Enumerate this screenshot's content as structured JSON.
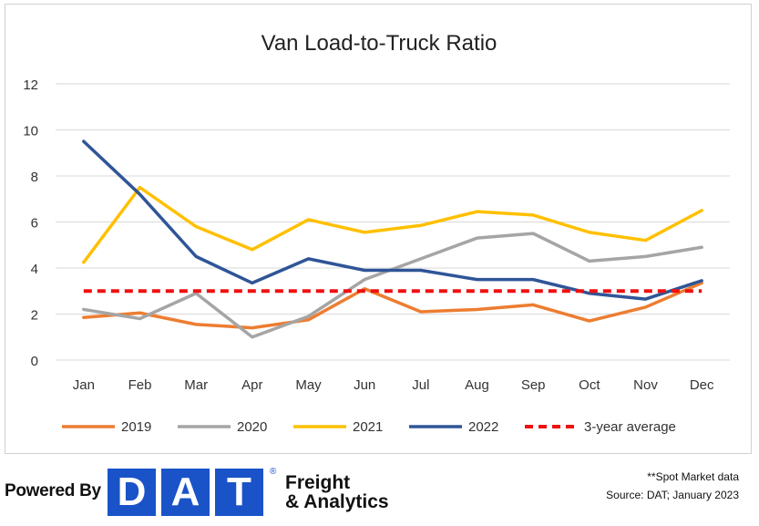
{
  "chart_data": {
    "type": "line",
    "title": "Van Load-to-Truck Ratio",
    "xlabel": "",
    "ylabel": "",
    "categories": [
      "Jan",
      "Feb",
      "Mar",
      "Apr",
      "May",
      "Jun",
      "Jul",
      "Aug",
      "Sep",
      "Oct",
      "Nov",
      "Dec"
    ],
    "ylim": [
      0,
      12
    ],
    "yticks": [
      "0",
      "2",
      "4",
      "6",
      "8",
      "10",
      "12"
    ],
    "grid": true,
    "legend_position": "bottom",
    "series": [
      {
        "name": "2019",
        "color": "#ed7d31",
        "dashed": false,
        "values": [
          1.85,
          2.05,
          1.55,
          1.4,
          1.75,
          3.1,
          2.1,
          2.2,
          2.4,
          1.7,
          2.3,
          3.35
        ]
      },
      {
        "name": "2020",
        "color": "#a5a5a5",
        "dashed": false,
        "values": [
          2.2,
          1.8,
          2.9,
          1.0,
          1.9,
          3.5,
          4.4,
          5.3,
          5.5,
          4.3,
          4.5,
          4.9
        ]
      },
      {
        "name": "2021",
        "color": "#ffc000",
        "dashed": false,
        "values": [
          4.25,
          7.5,
          5.8,
          4.8,
          6.1,
          5.55,
          5.85,
          6.45,
          6.3,
          5.55,
          5.2,
          6.5
        ]
      },
      {
        "name": "2022",
        "color": "#2f5597",
        "dashed": false,
        "values": [
          9.5,
          7.2,
          4.5,
          3.35,
          4.4,
          3.9,
          3.9,
          3.5,
          3.5,
          2.9,
          2.65,
          3.45
        ]
      },
      {
        "name": "3-year average",
        "color": "#ee1111",
        "dashed": true,
        "values": [
          3.0,
          3.0,
          3.0,
          3.0,
          3.0,
          3.0,
          3.0,
          3.0,
          3.0,
          3.0,
          3.0,
          3.0
        ]
      }
    ]
  },
  "footer": {
    "powered_by": "Powered By",
    "logo_letters": [
      "D",
      "A",
      "T"
    ],
    "logo_reg": "®",
    "tagline_line1": "Freight",
    "tagline_line2": "& Analytics",
    "note1": "**Spot Market data",
    "note2": "Source: DAT; January 2023",
    "logo_color": "#1a53c8"
  }
}
